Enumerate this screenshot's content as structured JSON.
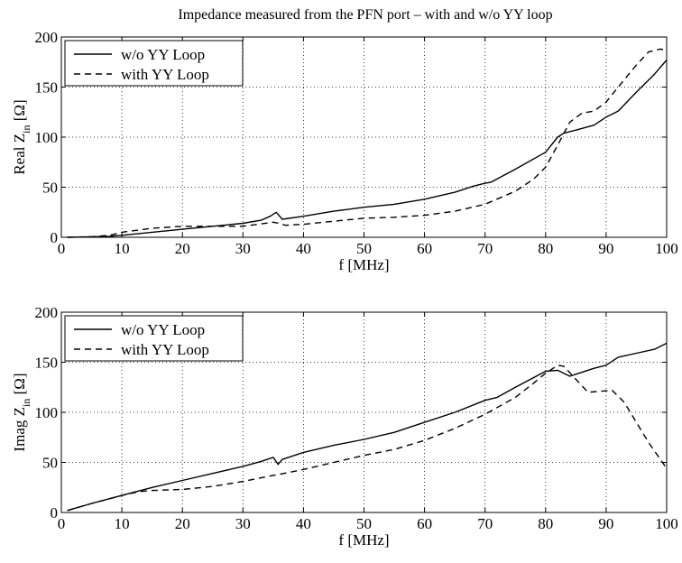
{
  "title": "Impedance measured from the PFN port – with and w/o YY loop",
  "chart_data": [
    {
      "type": "line",
      "title": "Impedance measured from the PFN port – with and w/o YY loop",
      "xlabel": "f [MHz]",
      "ylabel": "Real Z_in [Ω]",
      "ylabel_parts": {
        "prefix": "Real Z",
        "subscript": "in",
        "suffix": "[Ω]"
      },
      "xlim": [
        0,
        100
      ],
      "ylim": [
        0,
        200
      ],
      "xticks": [
        0,
        10,
        20,
        30,
        40,
        50,
        60,
        70,
        80,
        90,
        100
      ],
      "yticks": [
        0,
        50,
        100,
        150,
        200
      ],
      "grid": true,
      "legend_position": "top-left",
      "series": [
        {
          "name": "w/o YY Loop",
          "style": "solid",
          "x": [
            1,
            5,
            8,
            10,
            15,
            20,
            25,
            30,
            33,
            34.5,
            35.5,
            36.5,
            40,
            45,
            50,
            55,
            60,
            65,
            68,
            70,
            71,
            75,
            80,
            82,
            83,
            85,
            88,
            90,
            92,
            95,
            98,
            100
          ],
          "y": [
            0,
            0.5,
            1,
            2,
            5,
            8,
            11,
            14,
            17,
            21,
            25,
            18,
            21,
            26,
            30,
            33,
            38,
            45,
            51,
            54,
            55,
            68,
            85,
            100,
            104,
            107,
            112,
            120,
            126,
            145,
            163,
            177
          ]
        },
        {
          "name": "with YY Loop",
          "style": "dashed",
          "x": [
            1,
            5,
            8,
            10,
            15,
            20,
            25,
            30,
            35,
            36,
            37,
            40,
            45,
            50,
            55,
            60,
            65,
            70,
            75,
            78,
            80,
            82,
            84,
            86,
            88,
            90,
            92,
            95,
            97,
            99,
            100
          ],
          "y": [
            0,
            0.5,
            2,
            5,
            9,
            11,
            11,
            11,
            15,
            14,
            12,
            13,
            16,
            19,
            20,
            22,
            26,
            33,
            46,
            58,
            70,
            92,
            115,
            124,
            126,
            135,
            150,
            172,
            185,
            188,
            186
          ]
        }
      ]
    },
    {
      "type": "line",
      "title": "",
      "xlabel": "f [MHz]",
      "ylabel": "Imag Z_in [Ω]",
      "ylabel_parts": {
        "prefix": "Imag Z",
        "subscript": "in",
        "suffix": "[Ω]"
      },
      "xlim": [
        0,
        100
      ],
      "ylim": [
        0,
        200
      ],
      "xticks": [
        0,
        10,
        20,
        30,
        40,
        50,
        60,
        70,
        80,
        90,
        100
      ],
      "yticks": [
        0,
        50,
        100,
        150,
        200
      ],
      "grid": true,
      "legend_position": "top-left",
      "series": [
        {
          "name": "w/o YY Loop",
          "style": "solid",
          "x": [
            1,
            5,
            10,
            15,
            20,
            25,
            30,
            33,
            35,
            35.8,
            36.5,
            40,
            45,
            50,
            55,
            60,
            65,
            70,
            72,
            75,
            80,
            82,
            84,
            86,
            88,
            90,
            92,
            95,
            98,
            100
          ],
          "y": [
            2,
            9,
            17,
            25,
            32,
            39,
            46,
            51,
            55,
            48,
            53,
            60,
            67,
            73,
            80,
            90,
            100,
            112,
            115,
            125,
            141,
            142,
            136,
            140,
            144,
            147,
            155,
            159,
            163,
            169
          ]
        },
        {
          "name": "with YY Loop",
          "style": "dashed",
          "x": [
            1,
            5,
            10,
            13,
            15,
            20,
            25,
            30,
            35,
            36,
            40,
            45,
            50,
            55,
            60,
            65,
            70,
            75,
            78,
            80,
            82,
            83,
            85,
            87,
            89,
            91,
            93,
            95,
            97,
            100
          ],
          "y": [
            2,
            9,
            17,
            21,
            22,
            23,
            26,
            31,
            37,
            38,
            43,
            50,
            57,
            63,
            72,
            84,
            98,
            115,
            129,
            139,
            147,
            146,
            133,
            120,
            121,
            122,
            110,
            90,
            70,
            44
          ]
        }
      ]
    }
  ]
}
